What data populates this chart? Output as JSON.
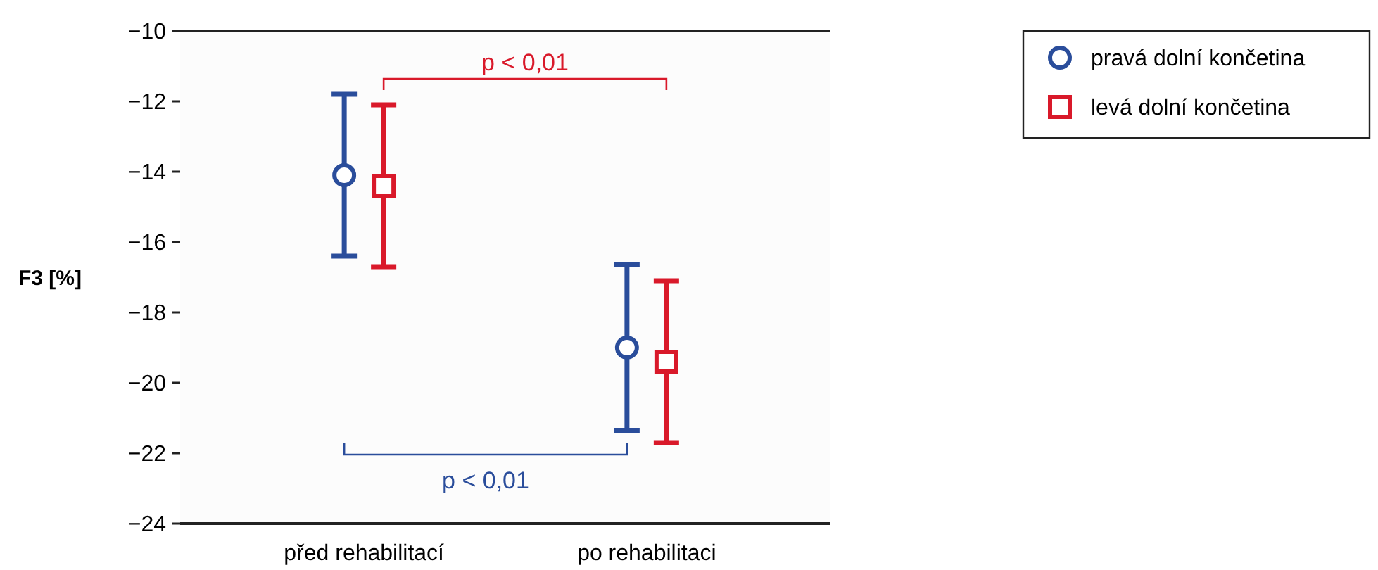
{
  "chart_data": {
    "type": "scatter",
    "ylabel": "F3 [%]",
    "categories": [
      "před rehabilitací",
      "po rehabilitaci"
    ],
    "series": [
      {
        "name": "pravá dolní končetina",
        "color": "#2a4d9b",
        "marker": "circle",
        "values": [
          -14.1,
          -19.0
        ],
        "errors": [
          2.3,
          2.35
        ]
      },
      {
        "name": "levá dolní končetina",
        "color": "#d9192a",
        "marker": "square",
        "values": [
          -14.4,
          -19.4
        ],
        "errors": [
          2.3,
          2.3
        ]
      }
    ],
    "ylim": [
      -24,
      -10
    ],
    "yticks": [
      -24,
      -22,
      -20,
      -18,
      -16,
      -14,
      -12,
      -10
    ],
    "legend": "top right",
    "grid": false,
    "annotations": [
      "p < 0,01",
      "p < 0,01"
    ]
  }
}
